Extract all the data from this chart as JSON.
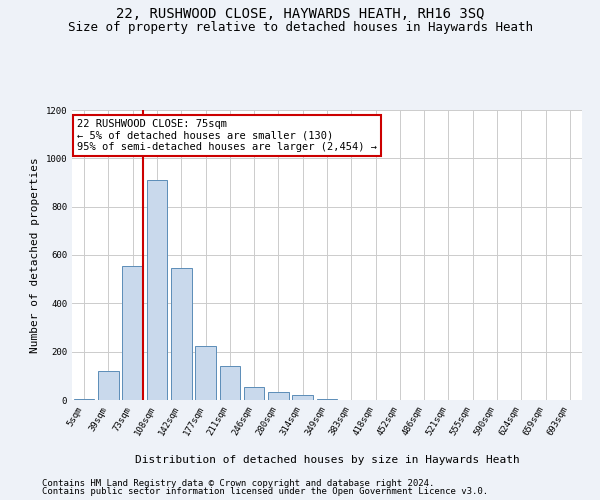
{
  "title1": "22, RUSHWOOD CLOSE, HAYWARDS HEATH, RH16 3SQ",
  "title2": "Size of property relative to detached houses in Haywards Heath",
  "xlabel": "Distribution of detached houses by size in Haywards Heath",
  "ylabel": "Number of detached properties",
  "footer1": "Contains HM Land Registry data © Crown copyright and database right 2024.",
  "footer2": "Contains public sector information licensed under the Open Government Licence v3.0.",
  "bin_labels": [
    "5sqm",
    "39sqm",
    "73sqm",
    "108sqm",
    "142sqm",
    "177sqm",
    "211sqm",
    "246sqm",
    "280sqm",
    "314sqm",
    "349sqm",
    "383sqm",
    "418sqm",
    "452sqm",
    "486sqm",
    "521sqm",
    "555sqm",
    "590sqm",
    "624sqm",
    "659sqm",
    "693sqm"
  ],
  "bar_heights": [
    5,
    120,
    555,
    910,
    545,
    225,
    140,
    55,
    33,
    20,
    5,
    0,
    0,
    0,
    0,
    0,
    0,
    0,
    0,
    0,
    0
  ],
  "bar_color": "#c9d9ec",
  "bar_edge_color": "#5b8db8",
  "vline_color": "#cc0000",
  "annotation_line1": "22 RUSHWOOD CLOSE: 75sqm",
  "annotation_line2": "← 5% of detached houses are smaller (130)",
  "annotation_line3": "95% of semi-detached houses are larger (2,454) →",
  "annotation_box_color": "#ffffff",
  "annotation_box_edge_color": "#cc0000",
  "ylim": [
    0,
    1200
  ],
  "yticks": [
    0,
    200,
    400,
    600,
    800,
    1000,
    1200
  ],
  "bg_color": "#eef2f8",
  "plot_bg_color": "#ffffff",
  "grid_color": "#cccccc",
  "title_fontsize": 10,
  "subtitle_fontsize": 9,
  "axis_label_fontsize": 8,
  "tick_fontsize": 6.5,
  "annotation_fontsize": 7.5,
  "footer_fontsize": 6.5
}
